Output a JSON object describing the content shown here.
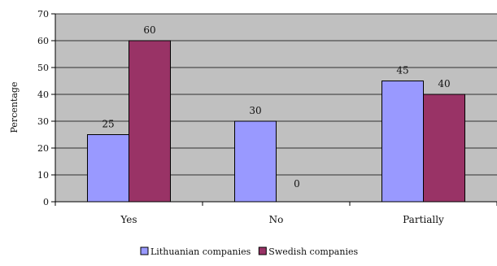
{
  "chart_data": {
    "type": "bar",
    "categories": [
      "Yes",
      "No",
      "Partially"
    ],
    "series": [
      {
        "name": "Lithuanian companies",
        "values": [
          25,
          30,
          45
        ],
        "color": "#9999ff"
      },
      {
        "name": "Swedish companies",
        "values": [
          60,
          0,
          40
        ],
        "color": "#993366"
      }
    ],
    "ylabel": "Percentage",
    "ylim": [
      0,
      70
    ],
    "yticks": [
      0,
      10,
      20,
      30,
      40,
      50,
      60,
      70
    ],
    "grid": true,
    "plot_background": "#c0c0c0",
    "legend": "bottom"
  }
}
